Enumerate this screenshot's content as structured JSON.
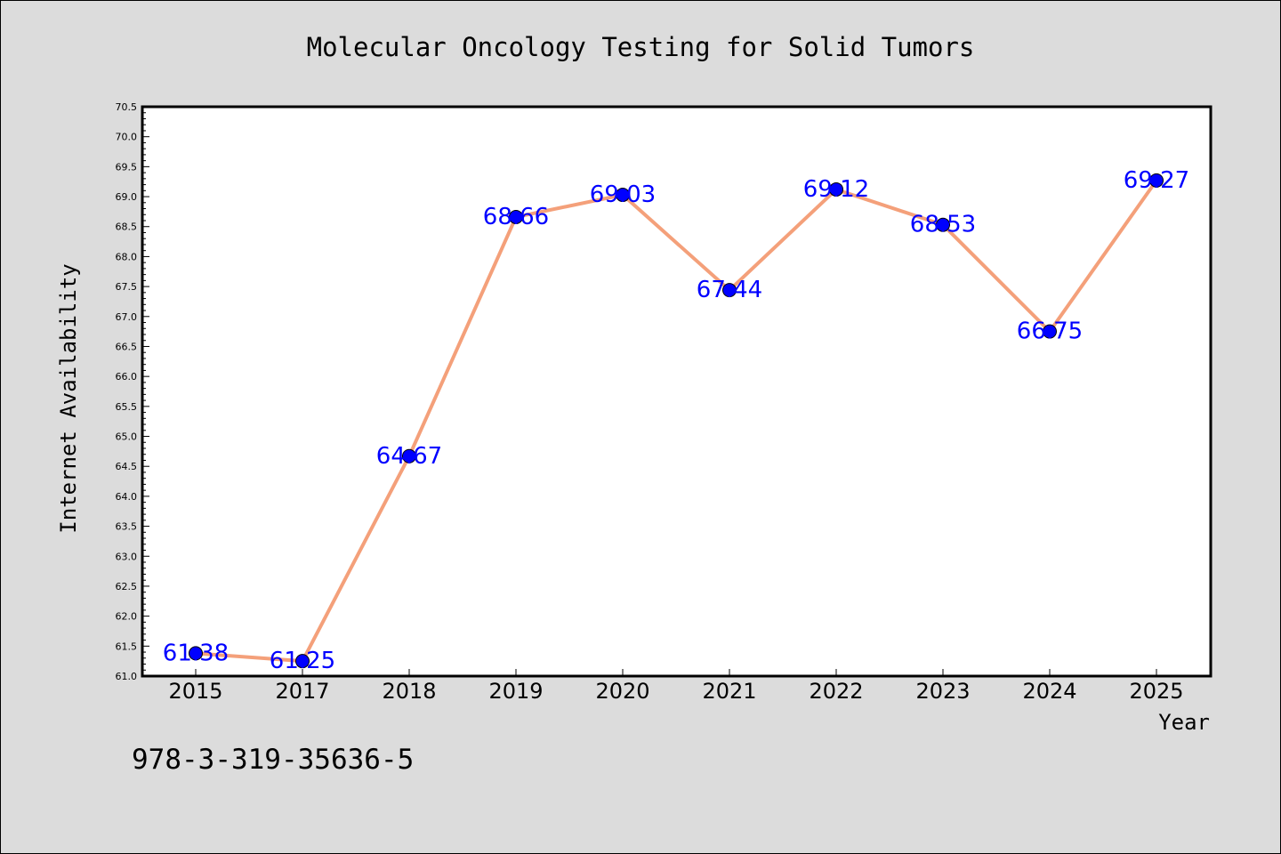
{
  "chart_data": {
    "type": "line",
    "title": "Molecular Oncology Testing for Solid Tumors",
    "xlabel": "Year",
    "ylabel": "Internet Availability",
    "categories": [
      "2015",
      "2017",
      "2018",
      "2019",
      "2020",
      "2021",
      "2022",
      "2023",
      "2024",
      "2025"
    ],
    "series": [
      {
        "values": [
          61.38,
          61.25,
          64.67,
          68.66,
          69.03,
          67.44,
          69.12,
          68.53,
          66.75,
          69.27
        ],
        "labels": [
          "61.38",
          "61.25",
          "64.67",
          "68.66",
          "69.03",
          "67.44",
          "69.12",
          "68.53",
          "66.75",
          "69.27"
        ]
      }
    ],
    "ylim": [
      61.0,
      70.5
    ],
    "yticks": [
      "61.0",
      "61.5",
      "62.0",
      "62.5",
      "63.0",
      "63.5",
      "64.0",
      "64.5",
      "65.0",
      "65.5",
      "66.0",
      "66.5",
      "67.0",
      "67.5",
      "68.0",
      "68.5",
      "69.0",
      "69.5",
      "70.0",
      "70.5"
    ],
    "grid": false,
    "legend": "none",
    "colors": {
      "line": "#f4a07a",
      "marker": "#0000ff",
      "label": "#0000ff",
      "plot_bg": "#ffffff",
      "figure_bg": "#dcdcdc"
    }
  },
  "footer": {
    "isbn": "978-3-319-35636-5"
  }
}
